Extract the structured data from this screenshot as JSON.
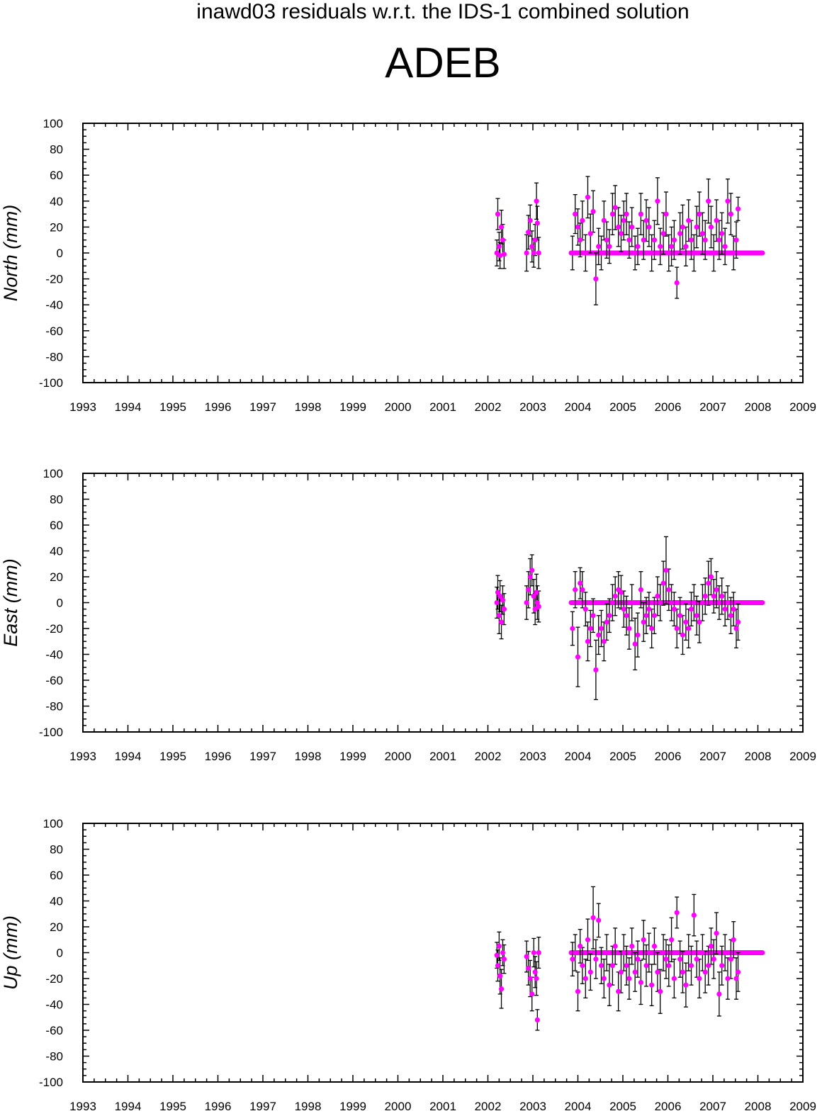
{
  "header": {
    "suptitle": "inawd03 residuals w.r.t. the IDS-1 combined solution",
    "station": "ADEB"
  },
  "colors": {
    "points": "#ff00ff",
    "errorbars": "#000000",
    "axes": "#000000"
  },
  "chart_data": [
    {
      "type": "scatter",
      "ylabel": "North (mm)",
      "xlim": [
        1993,
        2009
      ],
      "ylim": [
        -100,
        100
      ],
      "xticks": [
        "1993",
        "1994",
        "1995",
        "1996",
        "1997",
        "1998",
        "1999",
        "2000",
        "2001",
        "2002",
        "2003",
        "2004",
        "2005",
        "2006",
        "2007",
        "2008",
        "2009"
      ],
      "yticks": [
        "-100",
        "-80",
        "-60",
        "-40",
        "-20",
        "0",
        "20",
        "40",
        "60",
        "80",
        "100"
      ],
      "reference_line": {
        "y": 0,
        "x": [
          2003.85,
          2008.1
        ]
      },
      "series": [
        {
          "x": [
            2002.2,
            2002.22,
            2002.25,
            2002.27,
            2002.3,
            2002.33,
            2002.36,
            2002.86,
            2002.9,
            2002.94,
            2002.98,
            2003.02,
            2003.05,
            2003.08,
            2003.1,
            2003.13,
            2003.88,
            2003.94,
            2004.0,
            2004.05,
            2004.1,
            2004.17,
            2004.22,
            2004.28,
            2004.34,
            2004.4,
            2004.46,
            2004.52,
            2004.58,
            2004.64,
            2004.7,
            2004.77,
            2004.83,
            2004.9,
            2004.96,
            2005.02,
            2005.08,
            2005.14,
            2005.2,
            2005.27,
            2005.33,
            2005.4,
            2005.46,
            2005.52,
            2005.58,
            2005.64,
            2005.7,
            2005.77,
            2005.83,
            2005.9,
            2005.96,
            2006.02,
            2006.08,
            2006.14,
            2006.2,
            2006.27,
            2006.33,
            2006.4,
            2006.46,
            2006.52,
            2006.58,
            2006.64,
            2006.7,
            2006.77,
            2006.83,
            2006.9,
            2006.96,
            2007.02,
            2007.08,
            2007.14,
            2007.2,
            2007.27,
            2007.33,
            2007.4,
            2007.46,
            2007.52,
            2007.56
          ],
          "y": [
            0,
            30,
            5,
            -2,
            20,
            10,
            -1,
            0,
            16,
            25,
            5,
            0,
            10,
            40,
            23,
            0,
            0,
            30,
            20,
            10,
            25,
            0,
            43,
            15,
            32,
            -20,
            5,
            0,
            25,
            10,
            5,
            30,
            35,
            20,
            15,
            25,
            30,
            10,
            20,
            0,
            5,
            30,
            10,
            25,
            20,
            0,
            10,
            40,
            5,
            15,
            30,
            0,
            5,
            10,
            -23,
            15,
            20,
            5,
            25,
            10,
            0,
            20,
            30,
            15,
            10,
            40,
            20,
            0,
            25,
            10,
            15,
            5,
            40,
            30,
            0,
            10,
            34
          ],
          "err": [
            10,
            12,
            11,
            10,
            13,
            12,
            11,
            14,
            13,
            12,
            12,
            11,
            12,
            14,
            13,
            12,
            13,
            15,
            14,
            13,
            15,
            14,
            16,
            15,
            16,
            20,
            14,
            13,
            15,
            14,
            13,
            16,
            17,
            15,
            14,
            15,
            16,
            14,
            15,
            13,
            14,
            16,
            15,
            16,
            15,
            14,
            15,
            18,
            14,
            16,
            17,
            14,
            15,
            15,
            12,
            16,
            17,
            15,
            16,
            15,
            14,
            16,
            17,
            16,
            15,
            17,
            16,
            14,
            16,
            15,
            16,
            14,
            17,
            16,
            13,
            14,
            9
          ]
        }
      ]
    },
    {
      "type": "scatter",
      "ylabel": "East (mm)",
      "xlim": [
        1993,
        2009
      ],
      "ylim": [
        -100,
        100
      ],
      "xticks": [
        "1993",
        "1994",
        "1995",
        "1996",
        "1997",
        "1998",
        "1999",
        "2000",
        "2001",
        "2002",
        "2003",
        "2004",
        "2005",
        "2006",
        "2007",
        "2008",
        "2009"
      ],
      "yticks": [
        "-100",
        "-80",
        "-60",
        "-40",
        "-20",
        "0",
        "20",
        "40",
        "60",
        "80",
        "100"
      ],
      "reference_line": {
        "y": 0,
        "x": [
          2003.85,
          2008.1
        ]
      },
      "series": [
        {
          "x": [
            2002.2,
            2002.22,
            2002.25,
            2002.27,
            2002.3,
            2002.33,
            2002.36,
            2002.86,
            2002.9,
            2002.94,
            2002.98,
            2003.02,
            2003.05,
            2003.08,
            2003.1,
            2003.13,
            2003.88,
            2003.94,
            2004.0,
            2004.05,
            2004.1,
            2004.17,
            2004.22,
            2004.28,
            2004.34,
            2004.4,
            2004.46,
            2004.52,
            2004.58,
            2004.64,
            2004.7,
            2004.77,
            2004.83,
            2004.9,
            2004.96,
            2005.02,
            2005.08,
            2005.14,
            2005.2,
            2005.27,
            2005.33,
            2005.4,
            2005.46,
            2005.52,
            2005.58,
            2005.64,
            2005.7,
            2005.77,
            2005.83,
            2005.9,
            2005.96,
            2006.02,
            2006.08,
            2006.14,
            2006.2,
            2006.27,
            2006.33,
            2006.4,
            2006.46,
            2006.52,
            2006.58,
            2006.64,
            2006.7,
            2006.77,
            2006.83,
            2006.9,
            2006.96,
            2007.02,
            2007.08,
            2007.14,
            2007.2,
            2007.27,
            2007.33,
            2007.4,
            2007.46,
            2007.52,
            2007.56
          ],
          "y": [
            0,
            8,
            -10,
            5,
            -15,
            2,
            -5,
            0,
            10,
            20,
            25,
            5,
            -5,
            8,
            0,
            -3,
            -20,
            10,
            -42,
            15,
            10,
            -5,
            -30,
            -20,
            -10,
            -52,
            -25,
            -20,
            -30,
            -15,
            -10,
            0,
            5,
            10,
            8,
            -5,
            -10,
            -20,
            0,
            -32,
            -25,
            10,
            -15,
            -10,
            -5,
            -20,
            -10,
            5,
            0,
            15,
            25,
            10,
            0,
            -5,
            -20,
            -10,
            -25,
            -15,
            -20,
            -5,
            0,
            -10,
            -15,
            0,
            5,
            15,
            20,
            5,
            10,
            0,
            5,
            -5,
            0,
            -10,
            -5,
            -20,
            -15
          ],
          "err": [
            12,
            13,
            14,
            12,
            13,
            11,
            12,
            13,
            14,
            14,
            12,
            13,
            12,
            14,
            13,
            12,
            13,
            14,
            23,
            12,
            14,
            13,
            15,
            14,
            13,
            23,
            15,
            14,
            15,
            14,
            13,
            14,
            15,
            14,
            13,
            14,
            15,
            16,
            14,
            20,
            17,
            14,
            15,
            14,
            13,
            15,
            14,
            15,
            14,
            17,
            26,
            16,
            14,
            13,
            15,
            14,
            15,
            14,
            15,
            13,
            14,
            15,
            16,
            14,
            14,
            17,
            14,
            13,
            14,
            13,
            14,
            13,
            13,
            14,
            13,
            15,
            14
          ]
        }
      ]
    },
    {
      "type": "scatter",
      "ylabel": "Up (mm)",
      "xlim": [
        1993,
        2009
      ],
      "ylim": [
        -100,
        100
      ],
      "xticks": [
        "1993",
        "1994",
        "1995",
        "1996",
        "1997",
        "1998",
        "1999",
        "2000",
        "2001",
        "2002",
        "2003",
        "2004",
        "2005",
        "2006",
        "2007",
        "2008",
        "2009"
      ],
      "yticks": [
        "-100",
        "-80",
        "-60",
        "-40",
        "-20",
        "0",
        "20",
        "40",
        "60",
        "80",
        "100"
      ],
      "reference_line": {
        "y": 0,
        "x": [
          2003.85,
          2008.1
        ]
      },
      "series": [
        {
          "x": [
            2002.2,
            2002.22,
            2002.25,
            2002.27,
            2002.3,
            2002.33,
            2002.36,
            2002.86,
            2002.9,
            2002.94,
            2002.98,
            2003.02,
            2003.05,
            2003.08,
            2003.1,
            2003.13,
            2003.88,
            2003.94,
            2004.0,
            2004.05,
            2004.1,
            2004.17,
            2004.22,
            2004.28,
            2004.34,
            2004.4,
            2004.46,
            2004.52,
            2004.58,
            2004.64,
            2004.7,
            2004.77,
            2004.83,
            2004.9,
            2004.96,
            2005.02,
            2005.08,
            2005.14,
            2005.2,
            2005.27,
            2005.33,
            2005.4,
            2005.46,
            2005.52,
            2005.58,
            2005.64,
            2005.7,
            2005.77,
            2005.83,
            2005.9,
            2005.96,
            2006.02,
            2006.08,
            2006.14,
            2006.2,
            2006.27,
            2006.33,
            2006.4,
            2006.46,
            2006.52,
            2006.58,
            2006.64,
            2006.7,
            2006.77,
            2006.83,
            2006.9,
            2006.96,
            2007.02,
            2007.08,
            2007.14,
            2007.2,
            2007.27,
            2007.33,
            2007.4,
            2007.46,
            2007.52,
            2007.56
          ],
          "y": [
            -2,
            -10,
            5,
            -18,
            -28,
            0,
            -5,
            -3,
            -12,
            -20,
            -32,
            0,
            -15,
            -20,
            -52,
            0,
            -5,
            0,
            -30,
            5,
            -10,
            -20,
            10,
            -15,
            27,
            -5,
            25,
            -10,
            -20,
            0,
            -25,
            -10,
            5,
            -30,
            -15,
            0,
            -10,
            -20,
            5,
            -15,
            -5,
            -23,
            10,
            -10,
            0,
            -25,
            5,
            -15,
            -30,
            0,
            -5,
            -10,
            10,
            -20,
            31,
            -5,
            -15,
            -25,
            0,
            -10,
            29,
            -5,
            -20,
            0,
            -15,
            -10,
            5,
            -5,
            15,
            -32,
            -10,
            0,
            -20,
            -5,
            10,
            -20,
            -15
          ],
          "err": [
            10,
            12,
            11,
            14,
            15,
            10,
            11,
            12,
            13,
            14,
            13,
            11,
            12,
            13,
            8,
            12,
            13,
            14,
            15,
            13,
            14,
            15,
            16,
            14,
            24,
            15,
            13,
            14,
            15,
            14,
            16,
            15,
            14,
            15,
            16,
            14,
            15,
            16,
            14,
            15,
            14,
            17,
            15,
            16,
            15,
            16,
            14,
            15,
            17,
            14,
            15,
            16,
            17,
            15,
            12,
            14,
            16,
            17,
            14,
            15,
            16,
            14,
            15,
            14,
            16,
            15,
            14,
            15,
            16,
            17,
            15,
            14,
            16,
            15,
            14,
            16,
            15
          ]
        }
      ]
    }
  ]
}
